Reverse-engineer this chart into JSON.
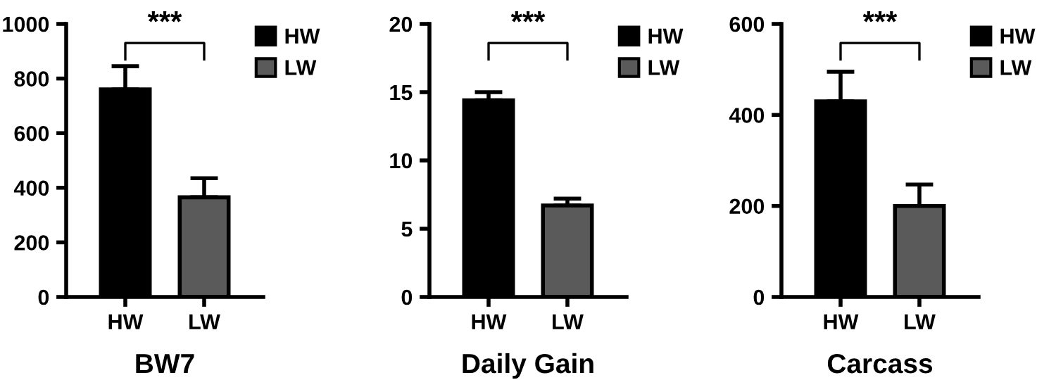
{
  "chart_data": [
    {
      "type": "bar",
      "xlabel": "BW7",
      "categories": [
        "HW",
        "LW"
      ],
      "ylim": [
        0,
        1000
      ],
      "yticks": [
        0,
        200,
        400,
        600,
        800,
        1000
      ],
      "legend": "top right",
      "annotations": [
        "***"
      ],
      "series": [
        {
          "name": "HW",
          "color": "#000000",
          "values": [
            760,
            null
          ],
          "errors": [
            [
              760,
              845
            ],
            null
          ]
        },
        {
          "name": "LW",
          "color": "#5a5a5a",
          "values": [
            null,
            365
          ],
          "errors": [
            null,
            [
              365,
              435
            ]
          ]
        }
      ]
    },
    {
      "type": "bar",
      "xlabel": "Daily Gain",
      "categories": [
        "HW",
        "LW"
      ],
      "ylim": [
        0,
        20
      ],
      "yticks": [
        0,
        5,
        10,
        15,
        20
      ],
      "legend": "top right",
      "annotations": [
        "***"
      ],
      "series": [
        {
          "name": "HW",
          "color": "#000000",
          "values": [
            14.4,
            null
          ],
          "errors": [
            [
              14.4,
              15.0
            ],
            null
          ]
        },
        {
          "name": "LW",
          "color": "#5a5a5a",
          "values": [
            null,
            6.7
          ],
          "errors": [
            null,
            [
              6.7,
              7.2
            ]
          ]
        }
      ]
    },
    {
      "type": "bar",
      "xlabel": "Carcass",
      "categories": [
        "HW",
        "LW"
      ],
      "ylim": [
        0,
        600
      ],
      "yticks": [
        0,
        200,
        400,
        600
      ],
      "legend": "top right",
      "annotations": [
        "***"
      ],
      "series": [
        {
          "name": "HW",
          "color": "#000000",
          "values": [
            430,
            null
          ],
          "errors": [
            [
              430,
              495
            ],
            null
          ]
        },
        {
          "name": "LW",
          "color": "#5a5a5a",
          "values": [
            null,
            200
          ],
          "errors": [
            null,
            [
              200,
              247
            ]
          ]
        }
      ]
    }
  ]
}
